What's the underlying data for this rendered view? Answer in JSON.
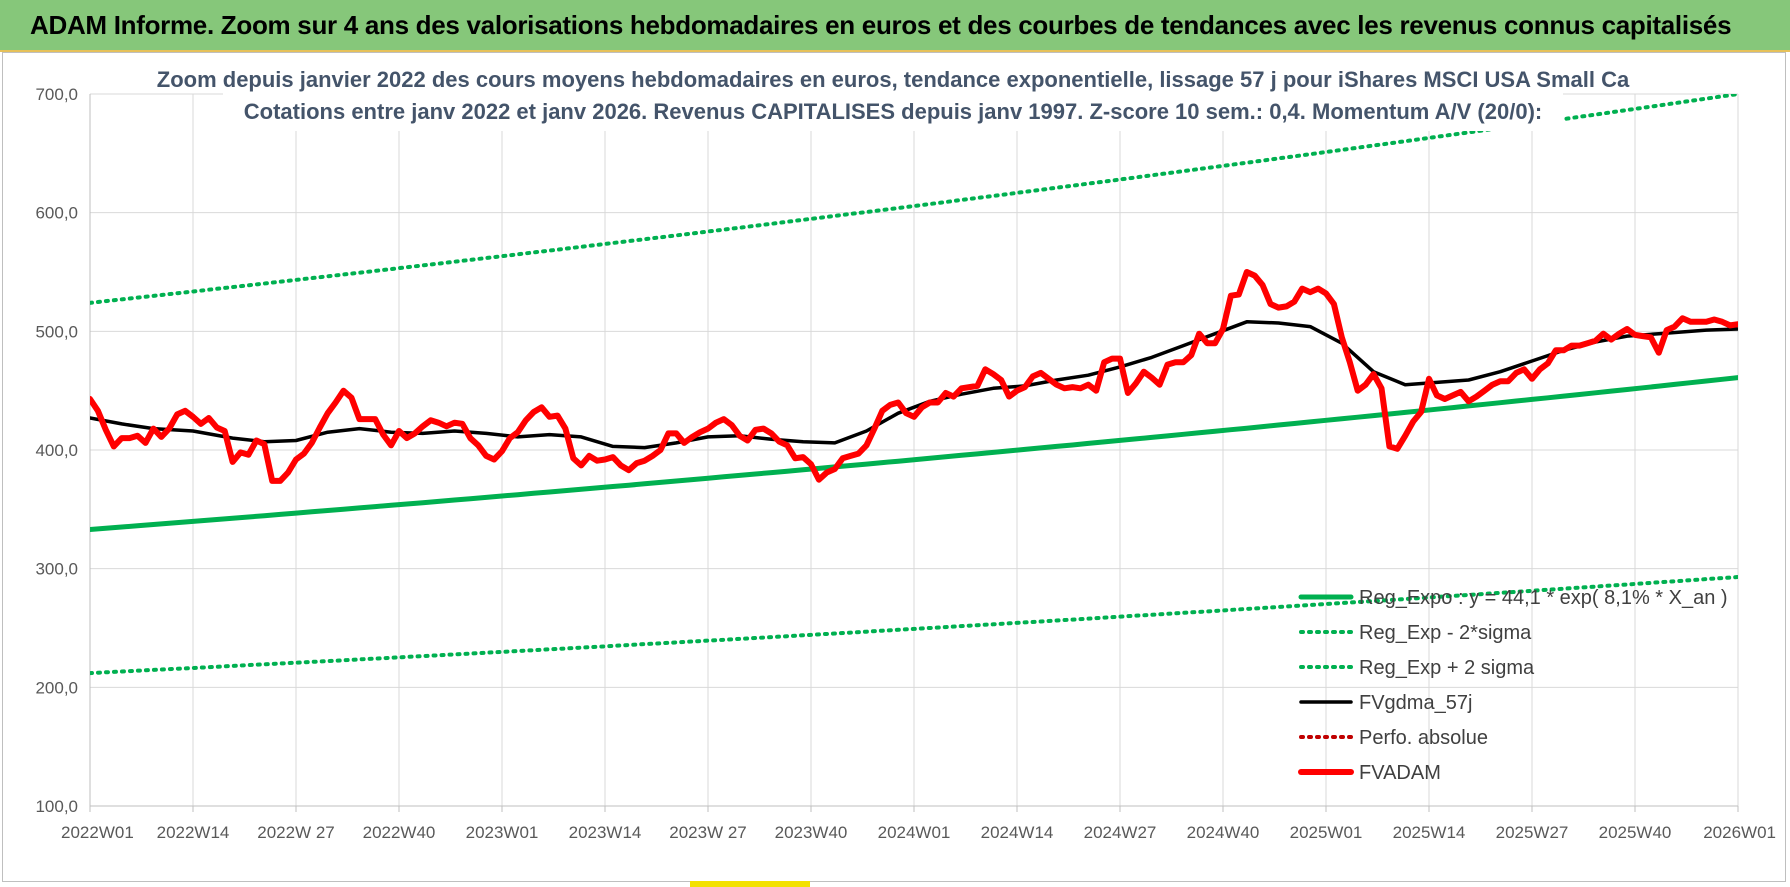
{
  "banner": {
    "title": "ADAM Informe. Zoom sur 4 ans des valorisations hebdomadaires en euros et des courbes de tendances avec les revenus connus capitalisés"
  },
  "colors": {
    "banner_bg": "#86c77a",
    "regression": "#00b050",
    "fvgdma": "#000000",
    "fvadam": "#ff0000",
    "perfo": "#c00000"
  },
  "chart_data": {
    "type": "line",
    "title": "Zoom depuis janvier 2022 des cours moyens hebdomadaires en euros, tendance exponentielle, lissage 57 j pour iShares MSCI USA Small Ca",
    "subtitle": "Cotations entre janv 2022 et janv 2026. Revenus CAPITALISES depuis janv 1997. Z-score 10 sem.: 0,4. Momentum A/V (20/0):",
    "xlabel": "",
    "ylabel": "",
    "ylim": [
      100,
      700
    ],
    "yticks": [
      "100,0",
      "200,0",
      "300,0",
      "400,0",
      "500,0",
      "600,0",
      "700,0"
    ],
    "x_categories": [
      "2022W01",
      "2022W14",
      "2022W 27",
      "2022W40",
      "2023W01",
      "2023W14",
      "2023W 27",
      "2023W40",
      "2024W01",
      "2024W14",
      "2024W27",
      "2024W40",
      "2025W01",
      "2025W14",
      "2025W27",
      "2025W40",
      "2026W01"
    ],
    "grid": true,
    "legend_position": "bottom-right",
    "series": [
      {
        "name": "Reg_Expo : y = 44,1 * exp( 8,1% * X_an )",
        "style": "solid-thick",
        "color": "#00b050",
        "x": [
          0,
          208
        ],
        "y": [
          333,
          461
        ]
      },
      {
        "name": "Reg_Exp - 2*sigma",
        "style": "dotted",
        "color": "#00b050",
        "x": [
          0,
          208
        ],
        "y": [
          212,
          293
        ]
      },
      {
        "name": "Reg_Exp + 2 sigma",
        "style": "dotted",
        "color": "#00b050",
        "x": [
          0,
          208
        ],
        "y": [
          524,
          700
        ]
      },
      {
        "name": "FVgdma_57j",
        "style": "solid",
        "color": "#000000",
        "x": [
          0,
          4,
          8,
          13,
          18,
          22,
          26,
          30,
          34,
          38,
          42,
          46,
          50,
          54,
          58,
          62,
          66,
          70,
          74,
          78,
          82,
          86,
          90,
          94,
          98,
          102,
          106,
          110,
          114,
          118,
          122,
          126,
          130,
          134,
          138,
          142,
          146,
          150,
          154,
          158,
          162,
          166,
          170,
          174,
          178,
          182,
          186,
          190,
          194,
          198,
          204,
          208
        ],
        "y": [
          427,
          422,
          418,
          416,
          410,
          407,
          408,
          415,
          418,
          415,
          414,
          416,
          414,
          411,
          413,
          411,
          403,
          402,
          406,
          411,
          412,
          409,
          407,
          406,
          416,
          431,
          441,
          447,
          452,
          454,
          459,
          463,
          470,
          478,
          488,
          498,
          508,
          507,
          504,
          490,
          466,
          455,
          457,
          459,
          466,
          475,
          484,
          491,
          496,
          498,
          501,
          502
        ]
      },
      {
        "name": "Perfo. absolue",
        "style": "dotted",
        "color": "#c00000",
        "x": [],
        "y": []
      },
      {
        "name": "FVADAM",
        "style": "solid-thick",
        "color": "#ff0000",
        "x": [
          0,
          1,
          2,
          3,
          4,
          5,
          6,
          7,
          8,
          9,
          10,
          11,
          12,
          13,
          14,
          15,
          16,
          17,
          18,
          19,
          20,
          21,
          22,
          23,
          24,
          25,
          26,
          27,
          28,
          29,
          30,
          31,
          32,
          33,
          34,
          35,
          36,
          37,
          38,
          39,
          40,
          41,
          42,
          43,
          44,
          45,
          46,
          47,
          48,
          49,
          50,
          51,
          52,
          53,
          54,
          55,
          56,
          57,
          58,
          59,
          60,
          61,
          62,
          63,
          64,
          65,
          66,
          67,
          68,
          69,
          70,
          71,
          72,
          73,
          74,
          75,
          76,
          77,
          78,
          79,
          80,
          81,
          82,
          83,
          84,
          85,
          86,
          87,
          88,
          89,
          90,
          91,
          92,
          93,
          94,
          95,
          96,
          97,
          98,
          99,
          100,
          101,
          102,
          103,
          104,
          105,
          106,
          107,
          108,
          109,
          110,
          111,
          112,
          113,
          114,
          115,
          116,
          117,
          118,
          119,
          120,
          121,
          122,
          123,
          124,
          125,
          126,
          127,
          128,
          129,
          130,
          131,
          132,
          133,
          134,
          135,
          136,
          137,
          138,
          139,
          140,
          141,
          142,
          143,
          144,
          145,
          146,
          147,
          148,
          149,
          150,
          151,
          152,
          153,
          154,
          155,
          156,
          157,
          158,
          159,
          160,
          161,
          162,
          163,
          164,
          165,
          166,
          167,
          168,
          169,
          170,
          171,
          172,
          173,
          174,
          175,
          176,
          177,
          178,
          179,
          180,
          181,
          182,
          183,
          184,
          185,
          186,
          187,
          188,
          189,
          190,
          191,
          192,
          193,
          194,
          195,
          196,
          197,
          198,
          199,
          200,
          201,
          202,
          203,
          204,
          205,
          206,
          207,
          208
        ],
        "y": [
          443,
          433,
          417,
          403,
          410,
          410,
          412,
          406,
          418,
          411,
          418,
          430,
          433,
          428,
          422,
          427,
          419,
          416,
          390,
          398,
          396,
          408,
          405,
          374,
          374,
          381,
          392,
          397,
          406,
          419,
          431,
          440,
          450,
          444,
          426,
          426,
          426,
          413,
          404,
          416,
          410,
          414,
          420,
          425,
          423,
          420,
          423,
          422,
          410,
          404,
          395,
          392,
          399,
          410,
          415,
          425,
          432,
          436,
          428,
          429,
          418,
          393,
          387,
          395,
          391,
          392,
          394,
          387,
          383,
          389,
          391,
          395,
          400,
          414,
          414,
          406,
          411,
          415,
          418,
          423,
          426,
          421,
          412,
          408,
          417,
          418,
          414,
          407,
          404,
          393,
          394,
          388,
          375,
          381,
          384,
          393,
          395,
          397,
          404,
          418,
          433,
          438,
          440,
          431,
          428,
          436,
          440,
          440,
          448,
          445,
          452,
          453,
          454,
          468,
          464,
          459,
          445,
          450,
          453,
          462,
          465,
          460,
          455,
          452,
          453,
          452,
          455,
          450,
          474,
          477,
          477,
          448,
          456,
          466,
          461,
          455,
          472,
          474,
          474,
          480,
          498,
          490,
          490,
          502,
          530,
          531,
          550,
          547,
          539,
          523,
          520,
          521,
          525,
          536,
          533,
          536,
          532,
          523,
          495,
          474,
          450,
          455,
          464,
          452,
          403,
          401,
          412,
          424,
          432,
          460,
          446,
          443,
          446,
          449,
          441,
          445,
          450,
          455,
          458,
          458,
          465,
          468,
          460,
          468,
          473,
          484,
          484,
          488,
          488,
          490,
          492,
          498,
          493,
          498,
          502,
          497,
          496,
          495,
          482,
          501,
          504,
          511,
          508,
          508,
          508,
          510,
          508,
          505,
          506
        ]
      }
    ]
  }
}
